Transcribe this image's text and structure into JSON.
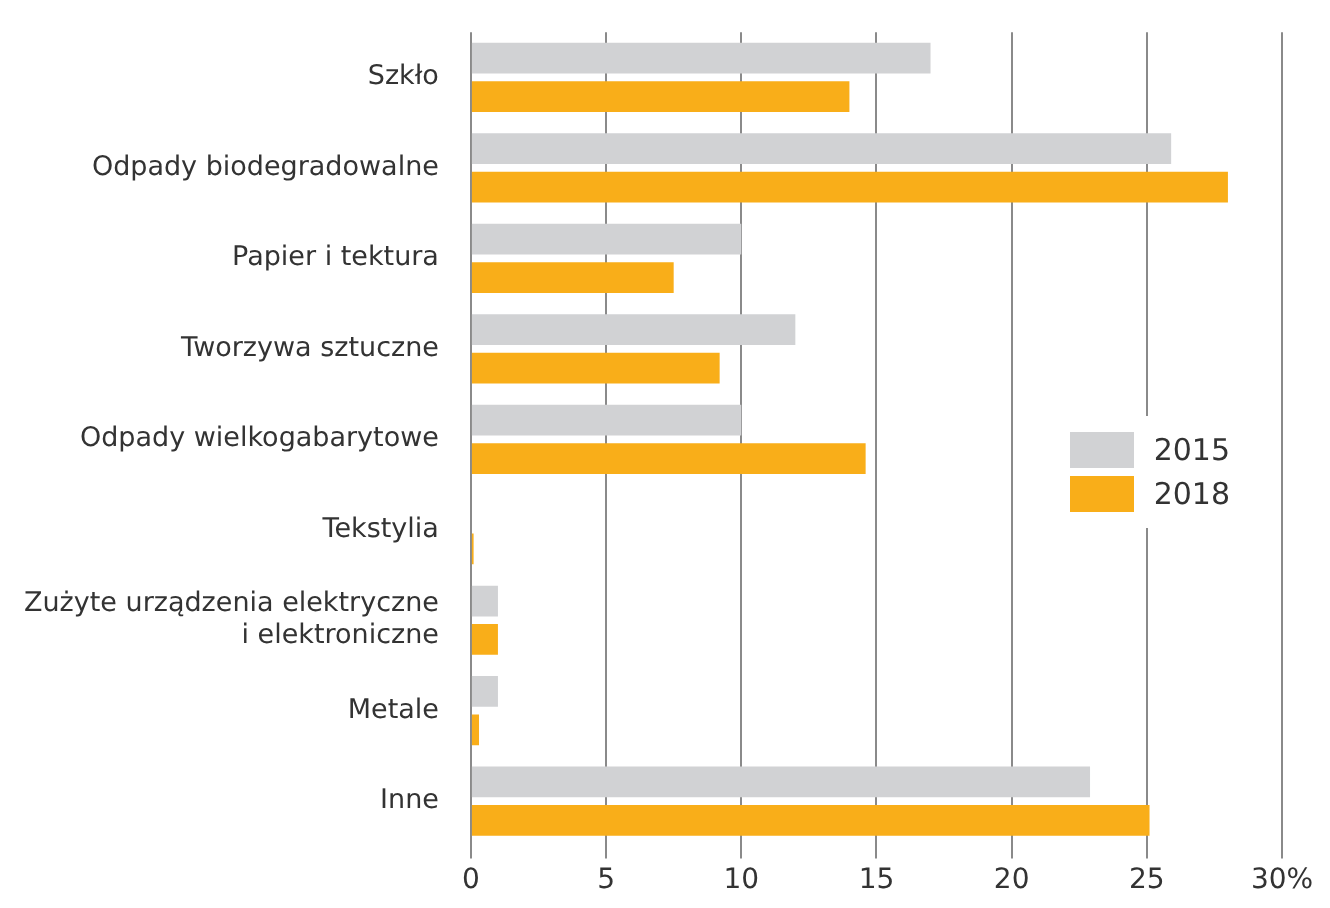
{
  "chart_data": {
    "type": "bar",
    "orientation": "horizontal",
    "categories": [
      "Szkło",
      "Odpady biodegradowalne",
      "Papier i tektura",
      "Tworzywa sztuczne",
      "Odpady wielkogabarytowe",
      "Tekstylia",
      "Zużyte urządzenia elektryczne i elektroniczne",
      "Metale",
      "Inne"
    ],
    "series": [
      {
        "name": "2015",
        "color": "#d1d2d4",
        "values": [
          17,
          25.9,
          10,
          12,
          10,
          0,
          1,
          1,
          22.9
        ]
      },
      {
        "name": "2018",
        "color": "#f9ae19",
        "values": [
          14,
          28,
          7.5,
          9.2,
          14.6,
          0.1,
          1,
          0.3,
          25.1
        ]
      }
    ],
    "xlim": [
      0,
      30
    ],
    "xticks": [
      0,
      5,
      10,
      15,
      20,
      25,
      {
        "value": 30,
        "label": "30%"
      }
    ],
    "grid": "x",
    "legend": "right"
  }
}
